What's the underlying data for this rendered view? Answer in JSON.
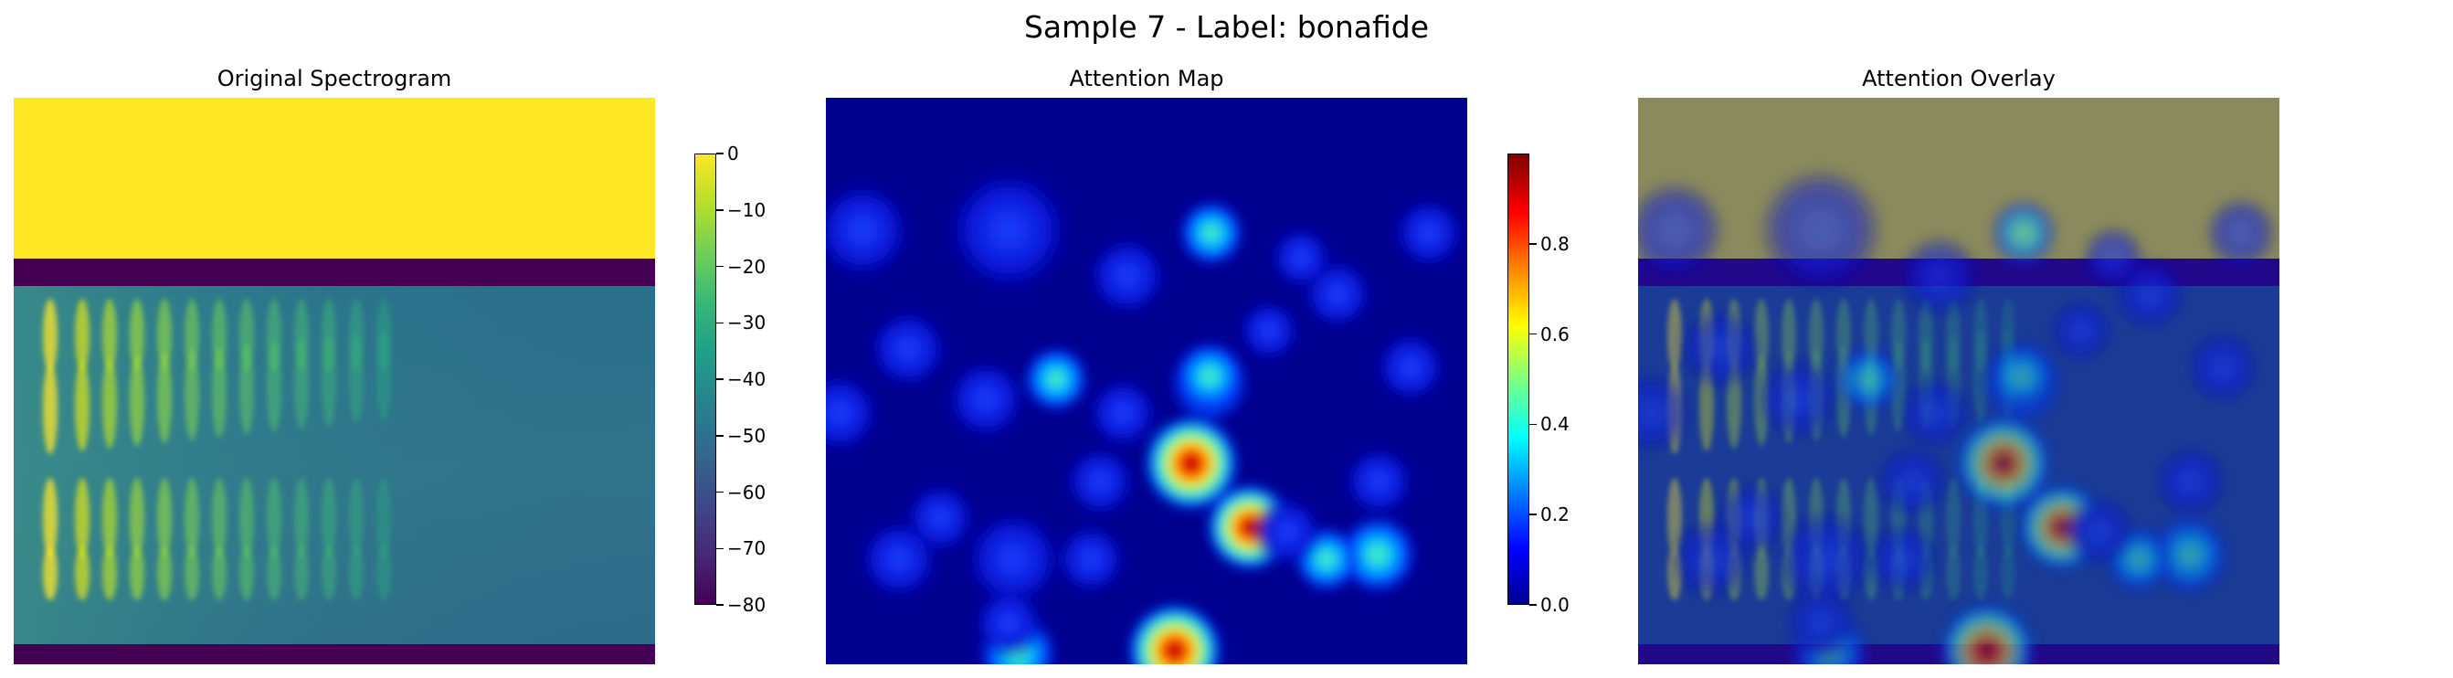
{
  "suptitle": "Sample 7 - Label: bonafide",
  "chart_data": [
    {
      "type": "heatmap",
      "title": "Original Spectrogram",
      "colormap": "viridis",
      "colorbar": {
        "range": [
          -80,
          0
        ],
        "ticks": [
          0,
          -10,
          -20,
          -30,
          -40,
          -50,
          -60,
          -70,
          -80
        ],
        "tick_labels": [
          "0",
          "−10",
          "−20",
          "−30",
          "−40",
          "−50",
          "−60",
          "−70",
          "−80"
        ]
      },
      "axis": "off"
    },
    {
      "type": "heatmap",
      "title": "Attention Map",
      "colormap": "jet",
      "colorbar": {
        "range": [
          0,
          1
        ],
        "ticks": [
          0.0,
          0.2,
          0.4,
          0.6,
          0.8
        ],
        "tick_labels": [
          "0.0",
          "0.2",
          "0.4",
          "0.6",
          "0.8"
        ]
      },
      "axis": "off"
    },
    {
      "type": "heatmap",
      "title": "Attention Overlay",
      "colormap": "viridis + jet overlay",
      "axis": "off"
    }
  ],
  "colors": {
    "viridis_top": "#fde725",
    "viridis_bottom": "#440154",
    "jet_low": "#00008f",
    "jet_high": "#800000"
  }
}
